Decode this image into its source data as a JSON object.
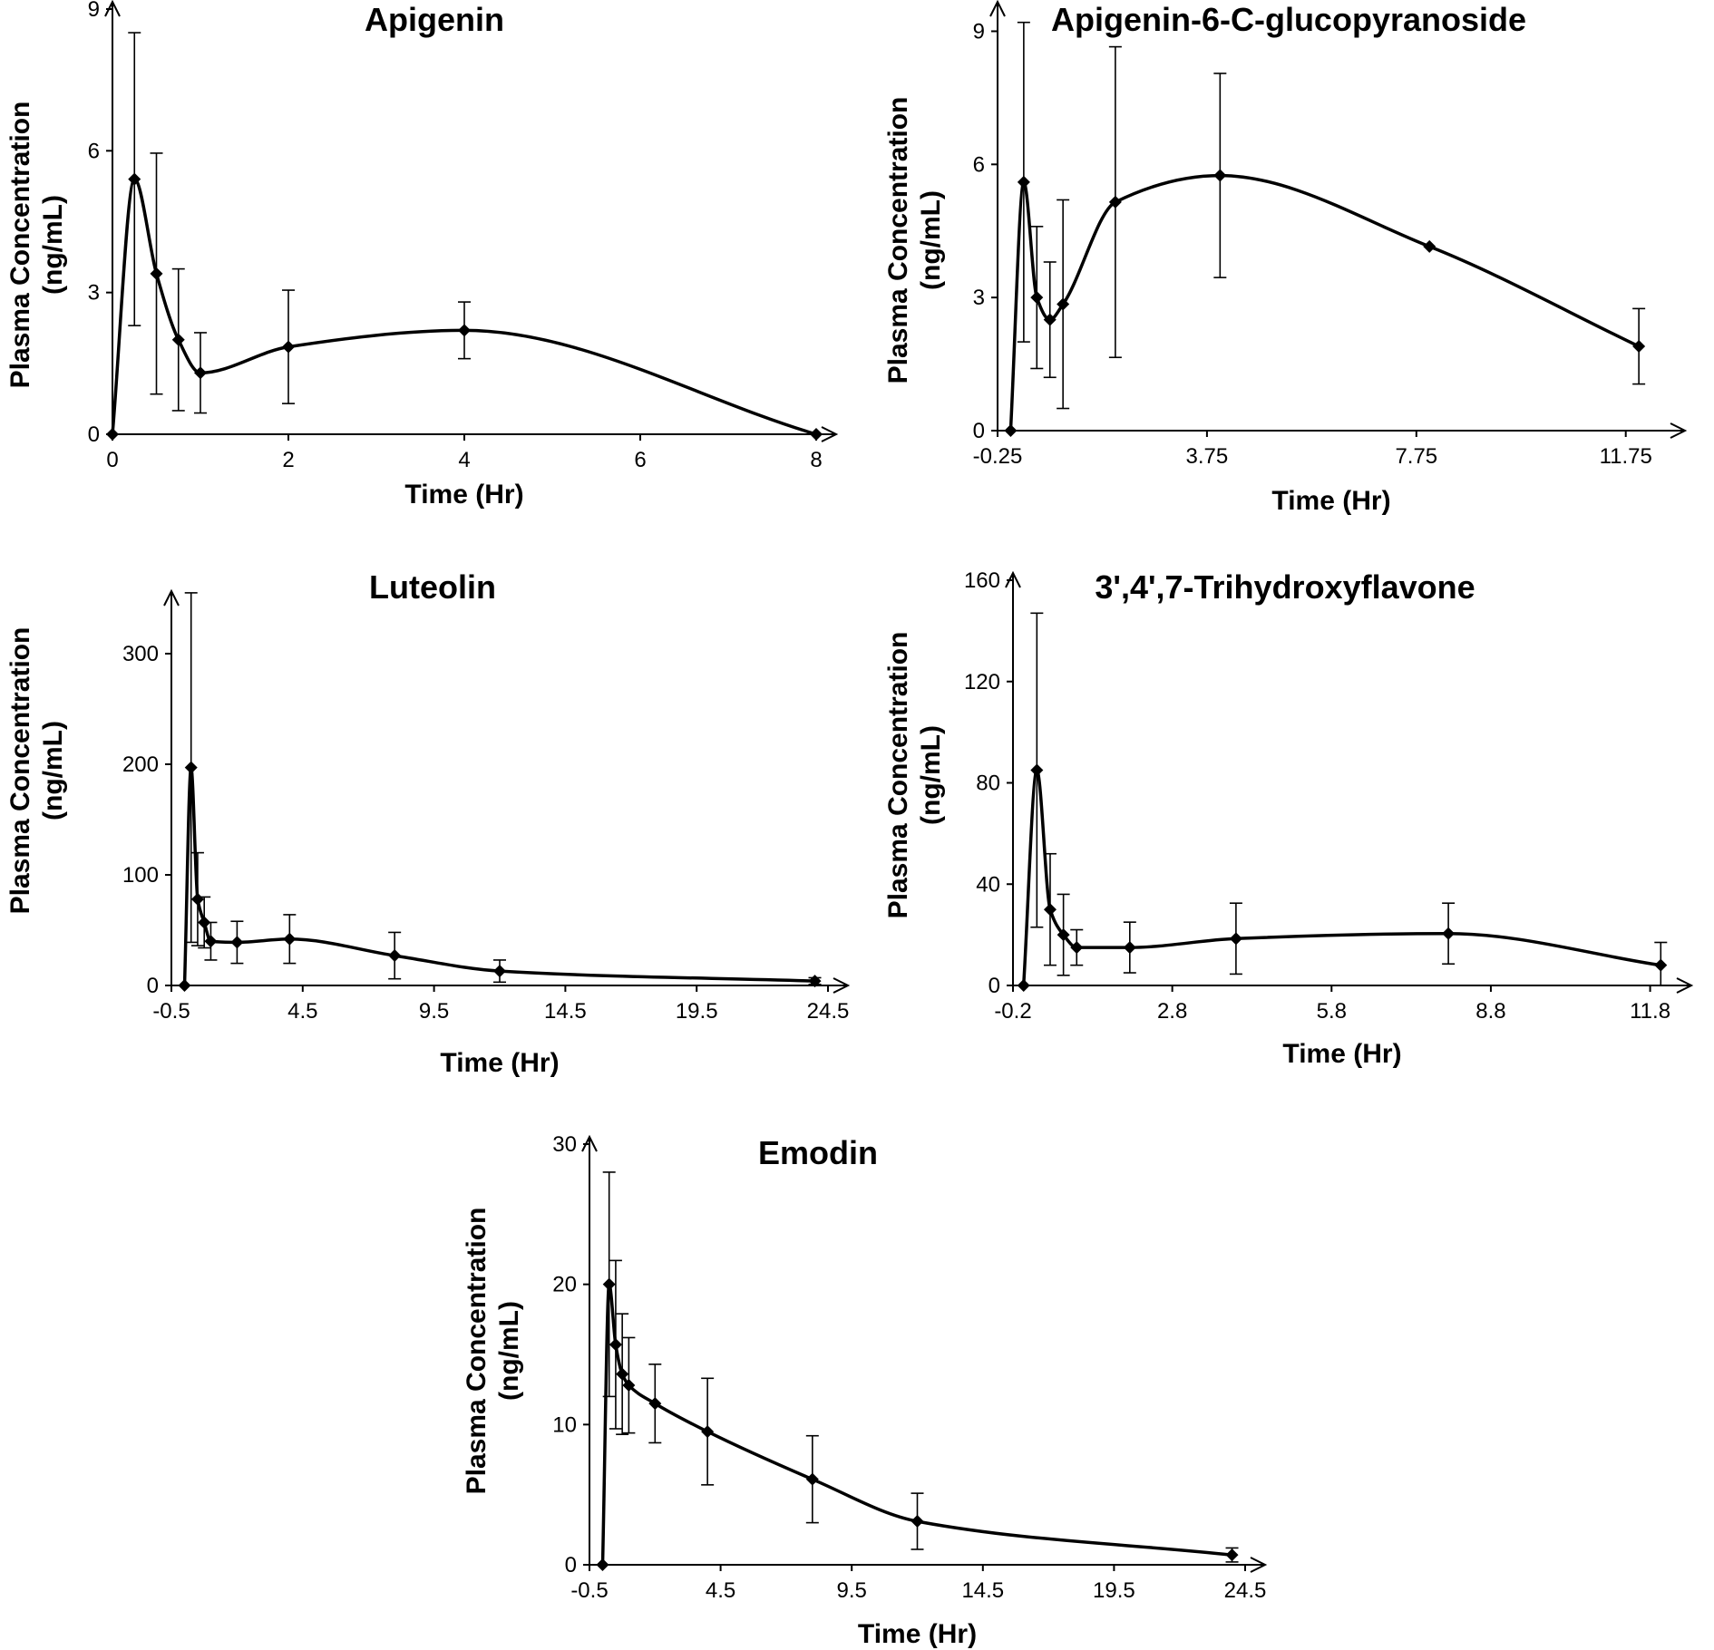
{
  "chart_data": [
    {
      "type": "line",
      "title": "Apigenin",
      "xlabel": "Time (Hr)",
      "ylabel": [
        "Plasma Concentration",
        "(ng/mL)"
      ],
      "xlim": [
        0,
        8
      ],
      "ylim": [
        0,
        9
      ],
      "xticks": [
        0,
        2,
        4,
        6,
        8
      ],
      "xtick_labels": [
        "0",
        "2",
        "4",
        "6",
        "8"
      ],
      "yticks": [
        0,
        3,
        6,
        9
      ],
      "ytick_labels": [
        "0",
        "3",
        "6",
        "9"
      ],
      "series": [
        {
          "x": [
            0,
            0.25,
            0.5,
            0.75,
            1,
            2,
            4,
            8
          ],
          "y": [
            0,
            5.4,
            3.4,
            2.0,
            1.3,
            1.85,
            2.2,
            0
          ],
          "err": [
            0,
            3.1,
            2.55,
            1.5,
            0.85,
            1.2,
            0.6,
            0
          ]
        }
      ]
    },
    {
      "type": "line",
      "title": "Apigenin-6-C-glucopyranoside",
      "xlabel": "Time (Hr)",
      "ylabel": [
        "Plasma Concentration",
        "(ng/mL)"
      ],
      "xlim": [
        -0.25,
        12.5
      ],
      "ylim": [
        0,
        9.5
      ],
      "xticks": [
        -0.25,
        3.75,
        7.75,
        11.75
      ],
      "xtick_labels": [
        "-0.25",
        "3.75",
        "7.75",
        "11.75"
      ],
      "yticks": [
        0,
        3,
        6,
        9
      ],
      "ytick_labels": [
        "0",
        "3",
        "6",
        "9"
      ],
      "series": [
        {
          "x": [
            0,
            0.25,
            0.5,
            0.75,
            1,
            2,
            4,
            8,
            12
          ],
          "y": [
            0,
            5.6,
            3.0,
            2.5,
            2.85,
            5.15,
            5.75,
            4.15,
            1.9
          ],
          "err": [
            0,
            3.6,
            1.6,
            1.3,
            2.35,
            3.5,
            2.3,
            0,
            0.85
          ]
        }
      ]
    },
    {
      "type": "line",
      "title": "Luteolin",
      "xlabel": "Time (Hr)",
      "ylabel": [
        "Plasma Concentration",
        "(ng/mL)"
      ],
      "xlim": [
        -0.5,
        24.5
      ],
      "ylim": [
        0,
        350
      ],
      "xticks": [
        -0.5,
        4.5,
        9.5,
        14.5,
        19.5,
        24.5
      ],
      "xtick_labels": [
        "-0.5",
        "4.5",
        "9.5",
        "14.5",
        "19.5",
        "24.5"
      ],
      "yticks": [
        0,
        100,
        200,
        300
      ],
      "ytick_labels": [
        "0",
        "100",
        "200",
        "300"
      ],
      "series": [
        {
          "x": [
            0,
            0.25,
            0.5,
            0.75,
            1,
            2,
            4,
            8,
            12,
            24
          ],
          "y": [
            0,
            197,
            78,
            57,
            40,
            39,
            42,
            27,
            13,
            4
          ],
          "err": [
            0,
            158,
            42,
            23,
            17,
            19,
            22,
            21,
            10,
            3
          ]
        }
      ]
    },
    {
      "type": "line",
      "title": "3',4',7-Trihydroxyflavone",
      "xlabel": "Time (Hr)",
      "ylabel": [
        "Plasma Concentration",
        "(ng/mL)"
      ],
      "xlim": [
        -0.2,
        12.2
      ],
      "ylim": [
        0,
        160
      ],
      "xticks": [
        -0.2,
        2.8,
        5.8,
        8.8,
        11.8
      ],
      "xtick_labels": [
        "-0.2",
        "2.8",
        "5.8",
        "8.8",
        "11.8"
      ],
      "yticks": [
        0,
        40,
        80,
        120,
        160
      ],
      "ytick_labels": [
        "0",
        "40",
        "80",
        "120",
        "160"
      ],
      "series": [
        {
          "x": [
            0,
            0.25,
            0.5,
            0.75,
            1,
            2,
            4,
            8,
            12
          ],
          "y": [
            0,
            85,
            30,
            20,
            15,
            15,
            18.5,
            20.5,
            8
          ],
          "err": [
            0,
            62,
            22,
            16,
            7,
            10,
            14,
            12,
            9
          ]
        }
      ]
    },
    {
      "type": "line",
      "title": "Emodin",
      "xlabel": "Time (Hr)",
      "ylabel": [
        "Plasma Concentration",
        "(ng/mL)"
      ],
      "xlim": [
        -0.5,
        24.5
      ],
      "ylim": [
        0,
        30
      ],
      "xticks": [
        -0.5,
        4.5,
        9.5,
        14.5,
        19.5,
        24.5
      ],
      "xtick_labels": [
        "-0.5",
        "4.5",
        "9.5",
        "14.5",
        "19.5",
        "24.5"
      ],
      "yticks": [
        0,
        10,
        20,
        30
      ],
      "ytick_labels": [
        "0",
        "10",
        "20",
        "30"
      ],
      "series": [
        {
          "x": [
            0,
            0.25,
            0.5,
            0.75,
            1,
            2,
            4,
            8,
            12,
            24
          ],
          "y": [
            0,
            20,
            15.7,
            13.6,
            12.8,
            11.5,
            9.5,
            6.1,
            3.1,
            0.7
          ],
          "err": [
            0,
            8,
            6,
            4.3,
            3.4,
            2.8,
            3.8,
            3.1,
            2,
            0.5
          ]
        }
      ]
    }
  ]
}
